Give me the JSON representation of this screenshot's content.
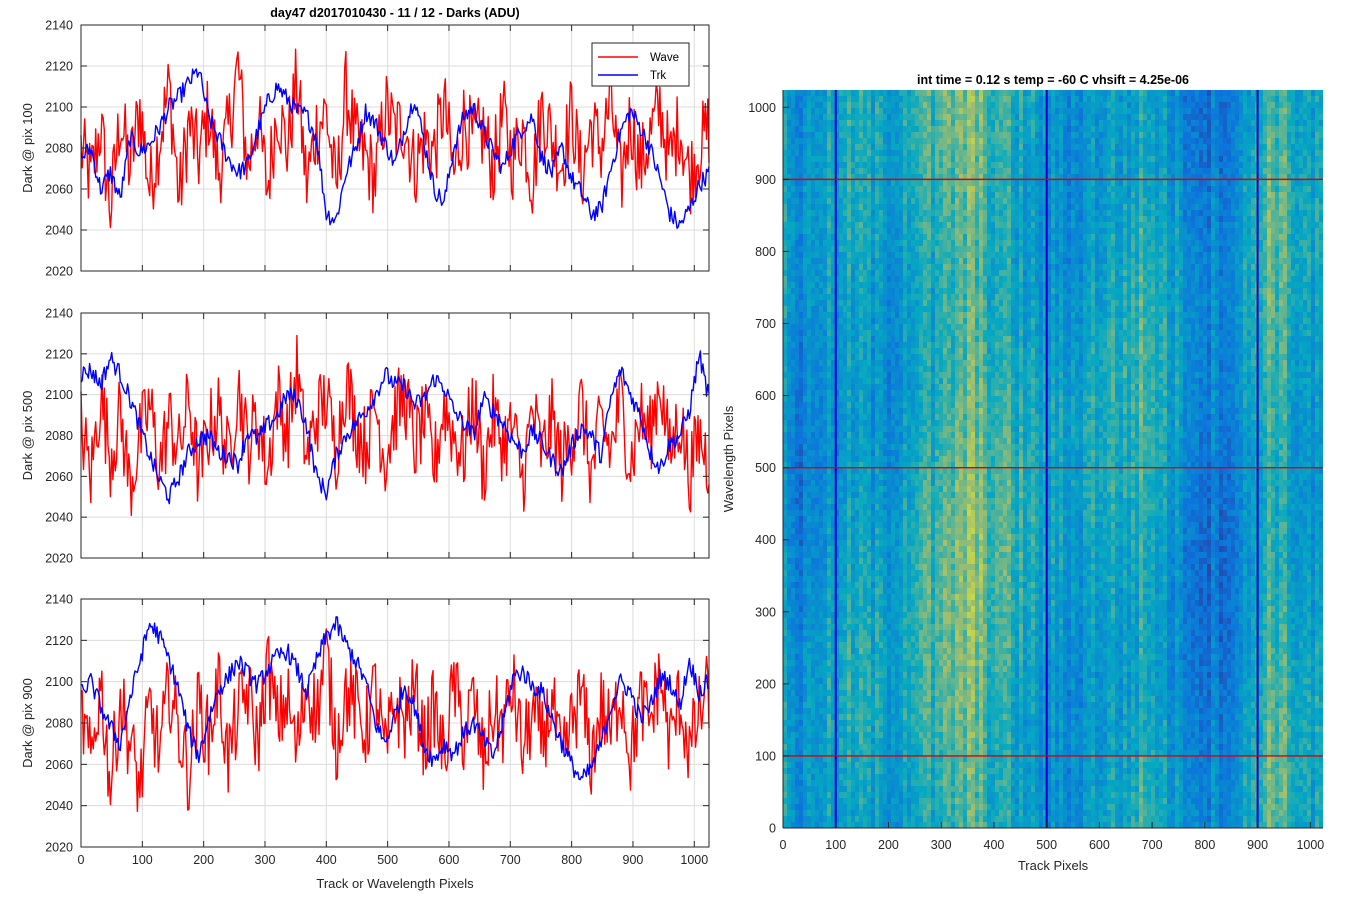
{
  "figure_title": "day47 d2017010430 - 11 / 12 - Darks (ADU)",
  "chart_data": [
    {
      "type": "line",
      "title": "day47 d2017010430 - 11 / 12 - Darks (ADU)",
      "xlabel": "",
      "ylabel": "Dark @ pix 100",
      "xlim": [
        0,
        1024
      ],
      "ylim": [
        2020,
        2140
      ],
      "xticks": [
        0,
        100,
        200,
        300,
        400,
        500,
        600,
        700,
        800,
        900,
        1000
      ],
      "yticks": [
        2020,
        2040,
        2060,
        2080,
        2100,
        2120,
        2140
      ],
      "grid": true,
      "legend": "top-right",
      "series": [
        {
          "name": "Wave",
          "color": "#ff0000",
          "x_step": 16,
          "values": [
            2080,
            2065,
            2090,
            2050,
            2095,
            2070,
            2100,
            2060,
            2085,
            2110,
            2055,
            2092,
            2075,
            2098,
            2068,
            2088,
            2120,
            2070,
            2095,
            2060,
            2100,
            2080,
            2113,
            2062,
            2090,
            2098,
            2058,
            2108,
            2083,
            2075,
            2065,
            2100,
            2088,
            2092,
            2070,
            2085,
            2078,
            2101,
            2066,
            2094,
            2082,
            2088,
            2070,
            2096,
            2074,
            2090,
            2064,
            2100,
            2085,
            2072,
            2098,
            2066,
            2091,
            2080,
            2104,
            2062,
            2095,
            2070,
            2086,
            2100,
            2073,
            2092,
            2066,
            2080,
            2090
          ]
        },
        {
          "name": "Trk",
          "color": "#0000ff",
          "x_step": 16,
          "values": [
            2075,
            2080,
            2060,
            2068,
            2055,
            2085,
            2078,
            2082,
            2090,
            2100,
            2105,
            2112,
            2118,
            2095,
            2085,
            2075,
            2068,
            2072,
            2088,
            2102,
            2110,
            2104,
            2098,
            2096,
            2085,
            2048,
            2045,
            2068,
            2080,
            2098,
            2092,
            2082,
            2072,
            2090,
            2105,
            2082,
            2060,
            2053,
            2080,
            2095,
            2100,
            2088,
            2078,
            2070,
            2082,
            2090,
            2095,
            2075,
            2068,
            2080,
            2065,
            2058,
            2048,
            2050,
            2070,
            2088,
            2098,
            2090,
            2080,
            2065,
            2048,
            2042,
            2050,
            2062,
            2068
          ]
        }
      ]
    },
    {
      "type": "line",
      "title": "",
      "xlabel": "",
      "ylabel": "Dark @ pix 500",
      "xlim": [
        0,
        1024
      ],
      "ylim": [
        2020,
        2140
      ],
      "xticks": [
        0,
        100,
        200,
        300,
        400,
        500,
        600,
        700,
        800,
        900,
        1000
      ],
      "yticks": [
        2020,
        2040,
        2060,
        2080,
        2100,
        2120,
        2140
      ],
      "grid": true,
      "series": [
        {
          "name": "Wave",
          "color": "#ff0000",
          "x_step": 16,
          "values": [
            2085,
            2060,
            2100,
            2070,
            2090,
            2055,
            2078,
            2095,
            2065,
            2088,
            2072,
            2098,
            2060,
            2082,
            2092,
            2068,
            2105,
            2074,
            2090,
            2062,
            2100,
            2080,
            2112,
            2068,
            2090,
            2098,
            2072,
            2108,
            2085,
            2075,
            2095,
            2068,
            2090,
            2100,
            2074,
            2088,
            2065,
            2095,
            2080,
            2070,
            2098,
            2062,
            2090,
            2076,
            2084,
            2058,
            2092,
            2070,
            2088,
            2065,
            2080,
            2095,
            2060,
            2086,
            2072,
            2098,
            2066,
            2090,
            2080,
            2108,
            2070,
            2090,
            2060,
            2080,
            2066
          ]
        },
        {
          "name": "Trk",
          "color": "#0000ff",
          "x_step": 16,
          "values": [
            2110,
            2112,
            2105,
            2118,
            2110,
            2098,
            2084,
            2070,
            2058,
            2050,
            2060,
            2072,
            2078,
            2080,
            2072,
            2070,
            2066,
            2082,
            2078,
            2085,
            2090,
            2100,
            2098,
            2085,
            2060,
            2052,
            2070,
            2080,
            2086,
            2092,
            2100,
            2110,
            2105,
            2104,
            2095,
            2098,
            2108,
            2104,
            2092,
            2086,
            2080,
            2098,
            2092,
            2086,
            2078,
            2072,
            2082,
            2076,
            2068,
            2062,
            2075,
            2084,
            2080,
            2070,
            2098,
            2112,
            2100,
            2090,
            2072,
            2064,
            2076,
            2080,
            2092,
            2120,
            2098
          ]
        }
      ]
    },
    {
      "type": "line",
      "title": "",
      "xlabel": "Track or Wavelength Pixels",
      "ylabel": "Dark @ pix 900",
      "xlim": [
        0,
        1024
      ],
      "ylim": [
        2020,
        2140
      ],
      "xticks": [
        0,
        100,
        200,
        300,
        400,
        500,
        600,
        700,
        800,
        900,
        1000
      ],
      "yticks": [
        2020,
        2040,
        2060,
        2080,
        2100,
        2120,
        2140
      ],
      "grid": true,
      "series": [
        {
          "name": "Wave",
          "color": "#ff0000",
          "x_step": 16,
          "values": [
            2085,
            2060,
            2100,
            2050,
            2092,
            2070,
            2048,
            2088,
            2065,
            2098,
            2075,
            2055,
            2090,
            2072,
            2100,
            2062,
            2085,
            2095,
            2070,
            2108,
            2080,
            2092,
            2066,
            2100,
            2084,
            2114,
            2070,
            2095,
            2088,
            2076,
            2098,
            2064,
            2090,
            2080,
            2096,
            2070,
            2088,
            2062,
            2100,
            2074,
            2092,
            2060,
            2086,
            2078,
            2098,
            2066,
            2084,
            2072,
            2090,
            2058,
            2080,
            2094,
            2062,
            2088,
            2074,
            2098,
            2064,
            2090,
            2080,
            2104,
            2070,
            2092,
            2066,
            2084,
            2096
          ]
        },
        {
          "name": "Trk",
          "color": "#0000ff",
          "x_step": 16,
          "values": [
            2095,
            2100,
            2088,
            2078,
            2070,
            2092,
            2110,
            2128,
            2122,
            2110,
            2095,
            2075,
            2064,
            2082,
            2096,
            2102,
            2110,
            2104,
            2098,
            2106,
            2112,
            2115,
            2106,
            2095,
            2110,
            2122,
            2128,
            2118,
            2110,
            2100,
            2080,
            2070,
            2084,
            2098,
            2088,
            2068,
            2062,
            2070,
            2065,
            2075,
            2080,
            2072,
            2064,
            2080,
            2102,
            2105,
            2098,
            2095,
            2082,
            2070,
            2060,
            2052,
            2058,
            2070,
            2088,
            2100,
            2095,
            2082,
            2088,
            2102,
            2100,
            2088,
            2110,
            2095,
            2100
          ]
        }
      ]
    },
    {
      "type": "heatmap",
      "title": "int time = 0.12 s    temp = -60 C    vhsift = 4.25e-06",
      "xlabel": "Track Pixels",
      "ylabel": "Wavelength Pixels",
      "xlim": [
        0,
        1024
      ],
      "ylim": [
        0,
        1024
      ],
      "xticks": [
        0,
        100,
        200,
        300,
        400,
        500,
        600,
        700,
        800,
        900,
        1000
      ],
      "yticks": [
        0,
        100,
        200,
        300,
        400,
        500,
        600,
        700,
        800,
        900,
        1000
      ],
      "colormap": "parula",
      "vertical_markers": {
        "values": [
          100,
          500,
          900
        ],
        "color": "#0000cc"
      },
      "horizontal_markers": {
        "values": [
          100,
          500,
          900
        ],
        "color": "#e00000"
      },
      "column_intensity": {
        "x_step": 32,
        "values": [
          0.45,
          0.3,
          0.45,
          0.4,
          0.48,
          0.45,
          0.4,
          0.5,
          0.55,
          0.52,
          0.62,
          0.68,
          0.6,
          0.55,
          0.5,
          0.45,
          0.42,
          0.4,
          0.46,
          0.5,
          0.48,
          0.55,
          0.52,
          0.42,
          0.36,
          0.3,
          0.32,
          0.36,
          0.55,
          0.62,
          0.5,
          0.45
        ]
      }
    }
  ]
}
